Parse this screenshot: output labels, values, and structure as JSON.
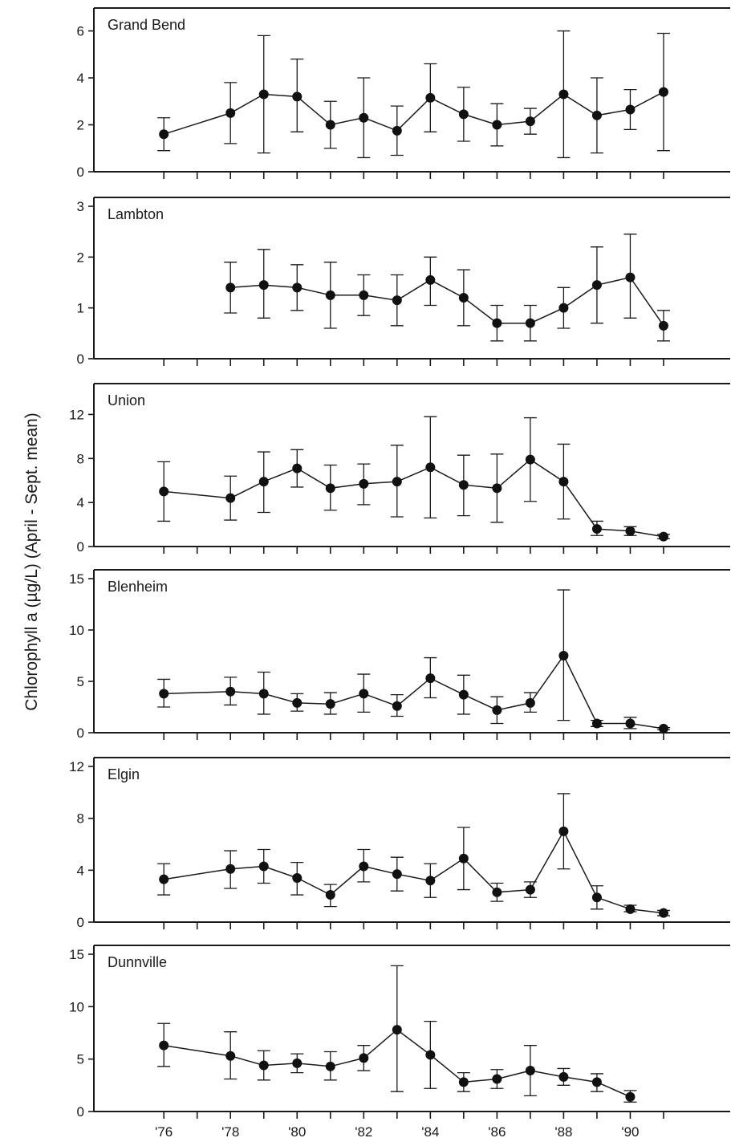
{
  "chart_data": {
    "type": "line",
    "ylabel": "Chlorophyll a (µg/L) (April - Sept. mean)",
    "x_ticks": [
      1976,
      1977,
      1978,
      1979,
      1980,
      1981,
      1982,
      1983,
      1984,
      1985,
      1986,
      1987,
      1988,
      1989,
      1990,
      1991
    ],
    "x_tick_labels": [
      {
        "x": 1976,
        "label": "'76"
      },
      {
        "x": 1978,
        "label": "'78"
      },
      {
        "x": 1980,
        "label": "'80"
      },
      {
        "x": 1982,
        "label": "'82"
      },
      {
        "x": 1984,
        "label": "'84"
      },
      {
        "x": 1986,
        "label": "'86"
      },
      {
        "x": 1988,
        "label": "'88"
      },
      {
        "x": 1990,
        "label": "'90"
      }
    ],
    "xlim": [
      1973.9,
      1993.0
    ],
    "panels": [
      {
        "label": "Grand Bend",
        "ylim": [
          0,
          6.6
        ],
        "yticks": [
          0,
          2,
          4,
          6
        ],
        "points": [
          {
            "x": 1976,
            "y": 1.6,
            "low": 0.9,
            "high": 2.3
          },
          {
            "x": 1978,
            "y": 2.5,
            "low": 1.2,
            "high": 3.8
          },
          {
            "x": 1979,
            "y": 3.3,
            "low": 0.8,
            "high": 5.8
          },
          {
            "x": 1980,
            "y": 3.2,
            "low": 1.7,
            "high": 4.8
          },
          {
            "x": 1981,
            "y": 2.0,
            "low": 1.0,
            "high": 3.0
          },
          {
            "x": 1982,
            "y": 2.3,
            "low": 0.6,
            "high": 4.0
          },
          {
            "x": 1983,
            "y": 1.75,
            "low": 0.7,
            "high": 2.8
          },
          {
            "x": 1984,
            "y": 3.15,
            "low": 1.7,
            "high": 4.6
          },
          {
            "x": 1985,
            "y": 2.45,
            "low": 1.3,
            "high": 3.6
          },
          {
            "x": 1986,
            "y": 2.0,
            "low": 1.1,
            "high": 2.9
          },
          {
            "x": 1987,
            "y": 2.15,
            "low": 1.6,
            "high": 2.7
          },
          {
            "x": 1988,
            "y": 3.3,
            "low": 0.6,
            "high": 6.0
          },
          {
            "x": 1989,
            "y": 2.4,
            "low": 0.8,
            "high": 4.0
          },
          {
            "x": 1990,
            "y": 2.65,
            "low": 1.8,
            "high": 3.5
          },
          {
            "x": 1991,
            "y": 3.4,
            "low": 0.9,
            "high": 5.9
          }
        ]
      },
      {
        "label": "Lambton",
        "ylim": [
          0,
          3.0
        ],
        "yticks": [
          0,
          1,
          2,
          3
        ],
        "points": [
          {
            "x": 1978,
            "y": 1.4,
            "low": 0.9,
            "high": 1.9
          },
          {
            "x": 1979,
            "y": 1.45,
            "low": 0.8,
            "high": 2.15
          },
          {
            "x": 1980,
            "y": 1.4,
            "low": 0.95,
            "high": 1.85
          },
          {
            "x": 1981,
            "y": 1.25,
            "low": 0.6,
            "high": 1.9
          },
          {
            "x": 1982,
            "y": 1.25,
            "low": 0.85,
            "high": 1.65
          },
          {
            "x": 1983,
            "y": 1.15,
            "low": 0.65,
            "high": 1.65
          },
          {
            "x": 1984,
            "y": 1.55,
            "low": 1.05,
            "high": 2.0
          },
          {
            "x": 1985,
            "y": 1.2,
            "low": 0.65,
            "high": 1.75
          },
          {
            "x": 1986,
            "y": 0.7,
            "low": 0.35,
            "high": 1.05
          },
          {
            "x": 1987,
            "y": 0.7,
            "low": 0.35,
            "high": 1.05
          },
          {
            "x": 1988,
            "y": 1.0,
            "low": 0.6,
            "high": 1.4
          },
          {
            "x": 1989,
            "y": 1.45,
            "low": 0.7,
            "high": 2.2
          },
          {
            "x": 1990,
            "y": 1.6,
            "low": 0.8,
            "high": 2.45
          },
          {
            "x": 1991,
            "y": 0.65,
            "low": 0.35,
            "high": 0.95
          }
        ]
      },
      {
        "label": "Union",
        "ylim": [
          0,
          14
        ],
        "yticks": [
          0,
          4,
          8,
          12
        ],
        "points": [
          {
            "x": 1976,
            "y": 5.0,
            "low": 2.3,
            "high": 7.7
          },
          {
            "x": 1978,
            "y": 4.4,
            "low": 2.4,
            "high": 6.4
          },
          {
            "x": 1979,
            "y": 5.9,
            "low": 3.1,
            "high": 8.6
          },
          {
            "x": 1980,
            "y": 7.1,
            "low": 5.4,
            "high": 8.8
          },
          {
            "x": 1981,
            "y": 5.3,
            "low": 3.3,
            "high": 7.4
          },
          {
            "x": 1982,
            "y": 5.7,
            "low": 3.8,
            "high": 7.5
          },
          {
            "x": 1983,
            "y": 5.9,
            "low": 2.7,
            "high": 9.2
          },
          {
            "x": 1984,
            "y": 7.2,
            "low": 2.6,
            "high": 11.8
          },
          {
            "x": 1985,
            "y": 5.6,
            "low": 2.8,
            "high": 8.3
          },
          {
            "x": 1986,
            "y": 5.3,
            "low": 2.2,
            "high": 8.4
          },
          {
            "x": 1987,
            "y": 7.9,
            "low": 4.1,
            "high": 11.7
          },
          {
            "x": 1988,
            "y": 5.9,
            "low": 2.5,
            "high": 9.3
          },
          {
            "x": 1989,
            "y": 1.6,
            "low": 1.0,
            "high": 2.3
          },
          {
            "x": 1990,
            "y": 1.4,
            "low": 1.0,
            "high": 1.8
          },
          {
            "x": 1991,
            "y": 0.9,
            "low": 0.7,
            "high": 1.1
          }
        ]
      },
      {
        "label": "Blenheim",
        "ylim": [
          0,
          15
        ],
        "yticks": [
          0,
          5,
          10,
          15
        ],
        "points": [
          {
            "x": 1976,
            "y": 3.8,
            "low": 2.5,
            "high": 5.2
          },
          {
            "x": 1978,
            "y": 4.0,
            "low": 2.7,
            "high": 5.4
          },
          {
            "x": 1979,
            "y": 3.8,
            "low": 1.8,
            "high": 5.9
          },
          {
            "x": 1980,
            "y": 2.9,
            "low": 2.1,
            "high": 3.8
          },
          {
            "x": 1981,
            "y": 2.8,
            "low": 1.8,
            "high": 3.9
          },
          {
            "x": 1982,
            "y": 3.8,
            "low": 2.0,
            "high": 5.7
          },
          {
            "x": 1983,
            "y": 2.6,
            "low": 1.6,
            "high": 3.7
          },
          {
            "x": 1984,
            "y": 5.3,
            "low": 3.4,
            "high": 7.3
          },
          {
            "x": 1985,
            "y": 3.7,
            "low": 1.8,
            "high": 5.6
          },
          {
            "x": 1986,
            "y": 2.2,
            "low": 0.9,
            "high": 3.5
          },
          {
            "x": 1987,
            "y": 2.9,
            "low": 2.0,
            "high": 3.9
          },
          {
            "x": 1988,
            "y": 7.5,
            "low": 1.2,
            "high": 13.9
          },
          {
            "x": 1989,
            "y": 0.9,
            "low": 0.6,
            "high": 1.2
          },
          {
            "x": 1990,
            "y": 0.9,
            "low": 0.4,
            "high": 1.5
          },
          {
            "x": 1991,
            "y": 0.4,
            "low": 0.3,
            "high": 0.5
          }
        ]
      },
      {
        "label": "Elgin",
        "ylim": [
          0,
          12
        ],
        "yticks": [
          0,
          4,
          8,
          12
        ],
        "points": [
          {
            "x": 1976,
            "y": 3.3,
            "low": 2.1,
            "high": 4.5
          },
          {
            "x": 1978,
            "y": 4.1,
            "low": 2.6,
            "high": 5.5
          },
          {
            "x": 1979,
            "y": 4.3,
            "low": 3.0,
            "high": 5.6
          },
          {
            "x": 1980,
            "y": 3.4,
            "low": 2.1,
            "high": 4.6
          },
          {
            "x": 1981,
            "y": 2.1,
            "low": 1.2,
            "high": 2.9
          },
          {
            "x": 1982,
            "y": 4.3,
            "low": 3.1,
            "high": 5.6
          },
          {
            "x": 1983,
            "y": 3.7,
            "low": 2.4,
            "high": 5.0
          },
          {
            "x": 1984,
            "y": 3.2,
            "low": 1.9,
            "high": 4.5
          },
          {
            "x": 1985,
            "y": 4.9,
            "low": 2.5,
            "high": 7.3
          },
          {
            "x": 1986,
            "y": 2.3,
            "low": 1.6,
            "high": 3.0
          },
          {
            "x": 1987,
            "y": 2.5,
            "low": 1.9,
            "high": 3.1
          },
          {
            "x": 1988,
            "y": 7.0,
            "low": 4.1,
            "high": 9.9
          },
          {
            "x": 1989,
            "y": 1.9,
            "low": 1.0,
            "high": 2.8
          },
          {
            "x": 1990,
            "y": 1.0,
            "low": 0.8,
            "high": 1.3
          },
          {
            "x": 1991,
            "y": 0.7,
            "low": 0.5,
            "high": 0.9
          }
        ]
      },
      {
        "label": "Dunnville",
        "ylim": [
          0,
          15
        ],
        "yticks": [
          0,
          5,
          10,
          15
        ],
        "points": [
          {
            "x": 1976,
            "y": 6.3,
            "low": 4.3,
            "high": 8.4
          },
          {
            "x": 1978,
            "y": 5.3,
            "low": 3.1,
            "high": 7.6
          },
          {
            "x": 1979,
            "y": 4.4,
            "low": 3.0,
            "high": 5.8
          },
          {
            "x": 1980,
            "y": 4.6,
            "low": 3.7,
            "high": 5.5
          },
          {
            "x": 1981,
            "y": 4.3,
            "low": 3.0,
            "high": 5.7
          },
          {
            "x": 1982,
            "y": 5.1,
            "low": 3.9,
            "high": 6.3
          },
          {
            "x": 1983,
            "y": 7.8,
            "low": 1.9,
            "high": 13.9
          },
          {
            "x": 1984,
            "y": 5.4,
            "low": 2.2,
            "high": 8.6
          },
          {
            "x": 1985,
            "y": 2.8,
            "low": 1.9,
            "high": 3.7
          },
          {
            "x": 1986,
            "y": 3.1,
            "low": 2.2,
            "high": 4.0
          },
          {
            "x": 1987,
            "y": 3.9,
            "low": 1.5,
            "high": 6.3
          },
          {
            "x": 1988,
            "y": 3.3,
            "low": 2.5,
            "high": 4.1
          },
          {
            "x": 1989,
            "y": 2.8,
            "low": 1.9,
            "high": 3.6
          },
          {
            "x": 1990,
            "y": 1.4,
            "low": 0.9,
            "high": 2.0
          }
        ]
      }
    ]
  }
}
